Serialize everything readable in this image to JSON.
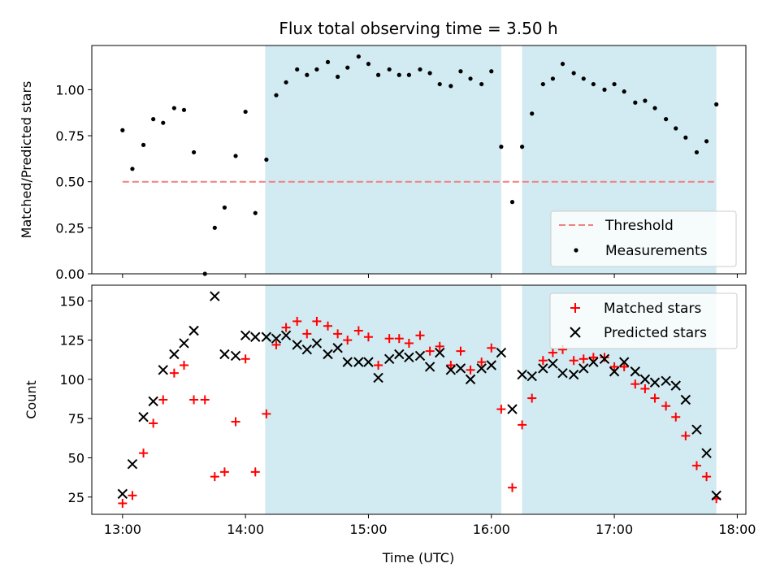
{
  "chart_data": {
    "title": "Flux total observing time = 3.50 h",
    "xlabel": "Time (UTC)",
    "x_ticks": [
      "13:00",
      "14:00",
      "15:00",
      "16:00",
      "17:00",
      "18:00"
    ],
    "x_tick_hours": [
      13,
      14,
      15,
      16,
      17,
      18
    ],
    "xlim": [
      12.75,
      18.07
    ],
    "shaded_intervals": [
      [
        14.16,
        16.08
      ],
      [
        16.25,
        17.83
      ]
    ],
    "shade_color": "#add8e6",
    "top_panel": {
      "type": "scatter",
      "ylabel": "Matched/Predicted stars",
      "ylim": [
        0,
        1.24
      ],
      "y_ticks": [
        0.0,
        0.25,
        0.5,
        0.75,
        1.0
      ],
      "y_tick_labels": [
        "0.00",
        "0.25",
        "0.50",
        "0.75",
        "1.00"
      ],
      "threshold": {
        "name": "Threshold",
        "value": 0.5,
        "x_range": [
          13.0,
          17.83
        ],
        "color": "#f08080"
      },
      "measurements": {
        "name": "Measurements",
        "color": "#000000",
        "x": [
          13.0,
          13.08,
          13.17,
          13.25,
          13.33,
          13.42,
          13.5,
          13.58,
          13.67,
          13.75,
          13.83,
          13.92,
          14.0,
          14.08,
          14.17,
          14.25,
          14.33,
          14.42,
          14.5,
          14.58,
          14.67,
          14.75,
          14.83,
          14.92,
          15.0,
          15.08,
          15.17,
          15.25,
          15.33,
          15.42,
          15.5,
          15.58,
          15.67,
          15.75,
          15.83,
          15.92,
          16.0,
          16.08,
          16.17,
          16.25,
          16.33,
          16.42,
          16.5,
          16.58,
          16.67,
          16.75,
          16.83,
          16.92,
          17.0,
          17.08,
          17.17,
          17.25,
          17.33,
          17.42,
          17.5,
          17.58,
          17.67,
          17.75,
          17.83
        ],
        "y": [
          0.78,
          0.57,
          0.7,
          0.84,
          0.82,
          0.9,
          0.89,
          0.66,
          0.0,
          0.25,
          0.36,
          0.64,
          0.88,
          0.33,
          0.62,
          0.97,
          1.04,
          1.11,
          1.08,
          1.11,
          1.15,
          1.07,
          1.12,
          1.18,
          1.14,
          1.08,
          1.11,
          1.08,
          1.08,
          1.11,
          1.09,
          1.03,
          1.02,
          1.1,
          1.06,
          1.03,
          1.1,
          0.69,
          0.39,
          0.69,
          0.87,
          1.03,
          1.06,
          1.14,
          1.09,
          1.06,
          1.03,
          1.0,
          1.03,
          0.99,
          0.93,
          0.94,
          0.9,
          0.84,
          0.79,
          0.74,
          0.66,
          0.72,
          0.92
        ]
      },
      "legend_position": "lower-right"
    },
    "bottom_panel": {
      "type": "scatter",
      "ylabel": "Count",
      "ylim": [
        14,
        160
      ],
      "y_ticks": [
        25,
        50,
        75,
        100,
        125,
        150
      ],
      "y_tick_labels": [
        "25",
        "50",
        "75",
        "100",
        "125",
        "150"
      ],
      "series": [
        {
          "name": "Matched stars",
          "marker": "plus",
          "color": "#ff0000",
          "x": [
            13.0,
            13.08,
            13.17,
            13.25,
            13.33,
            13.42,
            13.5,
            13.58,
            13.67,
            13.75,
            13.83,
            13.92,
            14.0,
            14.08,
            14.17,
            14.25,
            14.33,
            14.42,
            14.5,
            14.58,
            14.67,
            14.75,
            14.83,
            14.92,
            15.0,
            15.08,
            15.17,
            15.25,
            15.33,
            15.42,
            15.5,
            15.58,
            15.67,
            15.75,
            15.83,
            15.92,
            16.0,
            16.08,
            16.17,
            16.25,
            16.33,
            16.42,
            16.5,
            16.58,
            16.67,
            16.75,
            16.83,
            16.92,
            17.0,
            17.08,
            17.17,
            17.25,
            17.33,
            17.42,
            17.5,
            17.58,
            17.67,
            17.75,
            17.83
          ],
          "y": [
            21,
            26,
            53,
            72,
            87,
            104,
            109,
            87,
            87,
            38,
            41,
            73,
            113,
            41,
            78,
            122,
            133,
            137,
            129,
            137,
            134,
            129,
            125,
            131,
            127,
            109,
            126,
            126,
            123,
            128,
            118,
            121,
            109,
            118,
            106,
            111,
            120,
            81,
            31,
            71,
            88,
            112,
            117,
            119,
            112,
            113,
            114,
            114,
            108,
            108,
            97,
            94,
            88,
            83,
            76,
            64,
            45,
            38,
            24
          ]
        },
        {
          "name": "Predicted stars",
          "marker": "x",
          "color": "#000000",
          "x": [
            13.0,
            13.08,
            13.17,
            13.25,
            13.33,
            13.42,
            13.5,
            13.58,
            13.75,
            13.83,
            13.92,
            14.0,
            14.08,
            14.17,
            14.25,
            14.33,
            14.42,
            14.5,
            14.58,
            14.67,
            14.75,
            14.83,
            14.92,
            15.0,
            15.08,
            15.17,
            15.25,
            15.33,
            15.42,
            15.5,
            15.58,
            15.67,
            15.75,
            15.83,
            15.92,
            16.0,
            16.08,
            16.17,
            16.25,
            16.33,
            16.42,
            16.5,
            16.58,
            16.67,
            16.75,
            16.83,
            16.92,
            17.0,
            17.08,
            17.17,
            17.25,
            17.33,
            17.42,
            17.5,
            17.58,
            17.67,
            17.75,
            17.83
          ],
          "y": [
            27,
            46,
            76,
            86,
            106,
            116,
            123,
            131,
            153,
            116,
            115,
            128,
            127,
            127,
            126,
            128,
            122,
            119,
            123,
            116,
            120,
            111,
            111,
            111,
            101,
            113,
            116,
            114,
            115,
            108,
            117,
            106,
            107,
            100,
            107,
            109,
            117,
            81,
            103,
            102,
            107,
            110,
            104,
            103,
            107,
            111,
            113,
            105,
            111,
            105,
            100,
            98,
            99,
            96,
            87,
            68,
            53,
            26
          ]
        }
      ],
      "legend_position": "upper-right"
    }
  }
}
